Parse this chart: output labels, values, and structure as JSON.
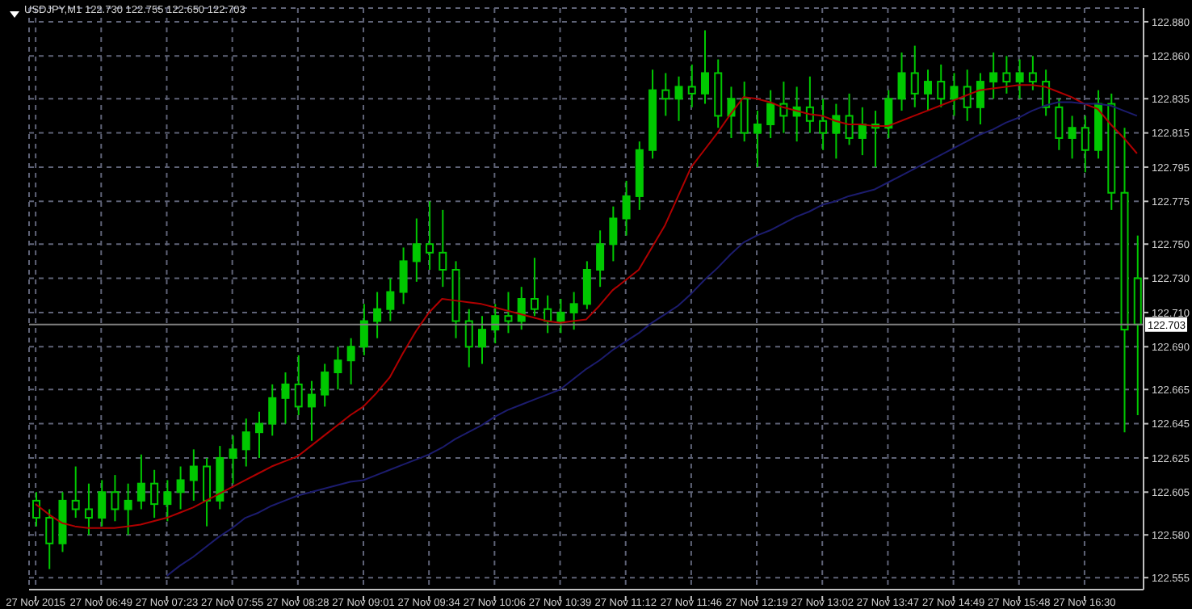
{
  "chart_data": {
    "type": "candlestick",
    "title": "USDJPY,M1 122.730 122.755 122.650 122.703",
    "categories": [
      "27 Nov 2015",
      null,
      null,
      null,
      null,
      "27 Nov 06:49",
      null,
      null,
      null,
      null,
      "27 Nov 07:23",
      null,
      null,
      null,
      null,
      "27 Nov 07:55",
      null,
      null,
      null,
      null,
      "27 Nov 08:28",
      null,
      null,
      null,
      null,
      "27 Nov 09:01",
      null,
      null,
      null,
      null,
      "27 Nov 09:34",
      null,
      null,
      null,
      null,
      "27 Nov 10:06",
      null,
      null,
      null,
      null,
      "27 Nov 10:39",
      null,
      null,
      null,
      null,
      "27 Nov 11:12",
      null,
      null,
      null,
      null,
      "27 Nov 11:46",
      null,
      null,
      null,
      null,
      "27 Nov 12:19",
      null,
      null,
      null,
      null,
      "27 Nov 13:02",
      null,
      null,
      null,
      null,
      "27 Nov 13:47",
      null,
      null,
      null,
      null,
      "27 Nov 14:49",
      null,
      null,
      null,
      null,
      "27 Nov 15:48",
      null,
      null,
      null,
      null,
      "27 Nov 16:30",
      null,
      null,
      null,
      null
    ],
    "color": "#00c800",
    "ohlc": [
      [
        122.6,
        122.605,
        122.585,
        122.59
      ],
      [
        122.59,
        122.595,
        122.56,
        122.575
      ],
      [
        122.575,
        122.605,
        122.57,
        122.6
      ],
      [
        122.6,
        122.62,
        122.59,
        122.595
      ],
      [
        122.595,
        122.61,
        122.58,
        122.59
      ],
      [
        122.59,
        122.612,
        122.585,
        122.605
      ],
      [
        122.605,
        122.615,
        122.588,
        122.595
      ],
      [
        122.595,
        122.61,
        122.58,
        122.6
      ],
      [
        122.6,
        122.627,
        122.595,
        122.61
      ],
      [
        122.61,
        122.618,
        122.59,
        122.598
      ],
      [
        122.598,
        122.612,
        122.588,
        122.605
      ],
      [
        122.605,
        122.62,
        122.595,
        122.612
      ],
      [
        122.612,
        122.63,
        122.6,
        122.62
      ],
      [
        122.62,
        122.625,
        122.585,
        122.6
      ],
      [
        122.6,
        122.632,
        122.595,
        122.625
      ],
      [
        122.625,
        122.638,
        122.61,
        122.63
      ],
      [
        122.63,
        122.648,
        122.62,
        122.64
      ],
      [
        122.64,
        122.652,
        122.625,
        122.645
      ],
      [
        122.645,
        122.668,
        122.638,
        122.66
      ],
      [
        122.66,
        122.675,
        122.645,
        122.668
      ],
      [
        122.668,
        122.685,
        122.65,
        122.655
      ],
      [
        122.655,
        122.67,
        122.635,
        122.662
      ],
      [
        122.662,
        122.68,
        122.655,
        122.675
      ],
      [
        122.675,
        122.69,
        122.665,
        122.682
      ],
      [
        122.682,
        122.695,
        122.668,
        122.69
      ],
      [
        122.69,
        122.715,
        122.685,
        122.705
      ],
      [
        122.705,
        122.722,
        122.695,
        122.712
      ],
      [
        122.712,
        122.73,
        122.705,
        122.722
      ],
      [
        122.722,
        122.748,
        122.715,
        122.74
      ],
      [
        122.74,
        122.765,
        122.728,
        122.75
      ],
      [
        122.75,
        122.775,
        122.735,
        122.745
      ],
      [
        122.745,
        122.77,
        122.725,
        122.735
      ],
      [
        122.735,
        122.74,
        122.695,
        122.705
      ],
      [
        122.705,
        122.712,
        122.678,
        122.69
      ],
      [
        122.69,
        122.708,
        122.68,
        122.7
      ],
      [
        122.7,
        122.715,
        122.692,
        122.708
      ],
      [
        122.708,
        122.722,
        122.698,
        122.705
      ],
      [
        122.705,
        122.725,
        122.7,
        122.718
      ],
      [
        122.718,
        122.742,
        122.708,
        122.712
      ],
      [
        122.712,
        122.72,
        122.698,
        122.705
      ],
      [
        122.705,
        122.718,
        122.698,
        122.71
      ],
      [
        122.71,
        122.722,
        122.7,
        122.715
      ],
      [
        122.715,
        122.74,
        122.712,
        122.735
      ],
      [
        122.735,
        122.758,
        122.725,
        122.75
      ],
      [
        122.75,
        122.772,
        122.74,
        122.765
      ],
      [
        122.765,
        122.787,
        122.755,
        122.778
      ],
      [
        122.778,
        122.81,
        122.77,
        122.805
      ],
      [
        122.805,
        122.852,
        122.8,
        122.84
      ],
      [
        122.84,
        122.85,
        122.825,
        122.835
      ],
      [
        122.835,
        122.848,
        122.822,
        122.842
      ],
      [
        122.842,
        122.855,
        122.83,
        122.838
      ],
      [
        122.838,
        122.875,
        122.832,
        122.85
      ],
      [
        122.85,
        122.858,
        122.818,
        122.825
      ],
      [
        122.825,
        122.842,
        122.812,
        122.835
      ],
      [
        122.835,
        122.845,
        122.81,
        122.815
      ],
      [
        122.815,
        122.828,
        122.795,
        122.82
      ],
      [
        122.82,
        122.84,
        122.812,
        122.832
      ],
      [
        122.832,
        122.845,
        122.815,
        122.825
      ],
      [
        122.825,
        122.842,
        122.81,
        122.83
      ],
      [
        122.83,
        122.848,
        122.815,
        122.822
      ],
      [
        122.822,
        122.835,
        122.805,
        122.815
      ],
      [
        122.815,
        122.832,
        122.8,
        122.825
      ],
      [
        122.825,
        122.838,
        122.808,
        122.812
      ],
      [
        122.812,
        122.83,
        122.802,
        122.82
      ],
      [
        122.82,
        122.828,
        122.795,
        122.818
      ],
      [
        122.818,
        122.84,
        122.812,
        122.835
      ],
      [
        122.835,
        122.862,
        122.828,
        122.85
      ],
      [
        122.85,
        122.866,
        122.83,
        122.838
      ],
      [
        122.838,
        122.852,
        122.828,
        122.845
      ],
      [
        122.845,
        122.855,
        122.83,
        122.835
      ],
      [
        122.835,
        122.85,
        122.825,
        122.842
      ],
      [
        122.842,
        122.852,
        122.822,
        122.83
      ],
      [
        122.83,
        122.85,
        122.82,
        122.845
      ],
      [
        122.845,
        122.862,
        122.835,
        122.85
      ],
      [
        122.85,
        122.86,
        122.838,
        122.845
      ],
      [
        122.845,
        122.858,
        122.835,
        122.85
      ],
      [
        122.85,
        122.86,
        122.84,
        122.845
      ],
      [
        122.845,
        122.852,
        122.825,
        122.83
      ],
      [
        122.83,
        122.835,
        122.805,
        122.812
      ],
      [
        122.812,
        122.825,
        122.8,
        122.818
      ],
      [
        122.818,
        122.825,
        122.792,
        122.805
      ],
      [
        122.805,
        122.84,
        122.8,
        122.832
      ],
      [
        122.832,
        122.838,
        122.77,
        122.78
      ],
      [
        122.78,
        122.818,
        122.64,
        122.7
      ],
      [
        122.73,
        122.755,
        122.65,
        122.703
      ]
    ],
    "series": [
      {
        "type": "line",
        "color": "#b00000",
        "values": [
          122.598,
          122.592,
          122.587,
          122.585,
          122.584,
          122.584,
          122.584,
          122.585,
          122.586,
          122.588,
          122.59,
          122.593,
          122.596,
          122.6,
          122.604,
          122.608,
          122.612,
          122.616,
          122.62,
          122.623,
          122.626,
          122.632,
          122.638,
          122.644,
          122.65,
          122.655,
          122.663,
          122.672,
          122.686,
          122.699,
          122.71,
          122.718,
          122.717,
          122.716,
          122.715,
          122.713,
          122.711,
          122.709,
          122.707,
          122.705,
          122.704,
          122.705,
          122.706,
          122.714,
          122.723,
          122.729,
          122.735,
          122.748,
          122.761,
          122.778,
          122.795,
          122.805,
          122.815,
          122.826,
          122.836,
          122.835,
          122.833,
          122.83,
          122.828,
          122.826,
          122.825,
          122.822,
          122.82,
          122.82,
          122.819,
          122.819,
          122.822,
          122.825,
          122.828,
          122.831,
          122.834,
          122.837,
          122.84,
          122.841,
          122.842,
          122.843,
          122.843,
          122.842,
          122.839,
          122.836,
          122.832,
          122.829,
          122.82,
          122.812,
          122.803
        ]
      },
      {
        "type": "line",
        "color": "#1c1c6e",
        "values": [
          null,
          null,
          null,
          null,
          null,
          null,
          null,
          null,
          null,
          null,
          122.556,
          122.562,
          122.567,
          122.573,
          122.579,
          122.584,
          122.59,
          122.593,
          122.597,
          122.6,
          122.603,
          122.605,
          122.607,
          122.609,
          122.611,
          122.612,
          122.615,
          122.618,
          122.621,
          122.624,
          122.627,
          122.631,
          122.636,
          122.64,
          122.644,
          122.649,
          122.653,
          122.656,
          122.659,
          122.662,
          122.665,
          122.671,
          122.677,
          122.682,
          122.688,
          122.693,
          122.698,
          122.704,
          122.709,
          122.714,
          122.721,
          122.729,
          122.736,
          122.744,
          122.751,
          122.755,
          122.758,
          122.762,
          122.766,
          122.769,
          122.773,
          122.775,
          122.778,
          122.78,
          122.782,
          122.786,
          122.79,
          122.794,
          122.798,
          122.802,
          122.806,
          122.81,
          122.814,
          122.817,
          122.821,
          122.824,
          122.828,
          122.831,
          122.833,
          122.833,
          122.832,
          122.832,
          122.831,
          122.828,
          122.825
        ]
      }
    ],
    "marker": "none",
    "ylim": [
      122.548,
      122.888
    ],
    "yticks": [
      122.555,
      {
        "value": 122.58,
        "label": "122.580"
      },
      122.605,
      122.625,
      122.645,
      122.665,
      {
        "value": 122.69,
        "label": "122.690"
      },
      {
        "value": 122.71,
        "label": "122.710"
      },
      {
        "value": 122.73,
        "label": "122.730"
      },
      {
        "value": 122.75,
        "label": "122.750"
      },
      122.775,
      122.795,
      122.815,
      122.835,
      {
        "value": 122.86,
        "label": "122.860"
      },
      {
        "value": 122.88,
        "label": "122.880"
      }
    ],
    "grid": true,
    "ref_lines": [
      {
        "axis": "y",
        "value": 122.703,
        "label": "122.703",
        "color": "#808080"
      }
    ]
  }
}
